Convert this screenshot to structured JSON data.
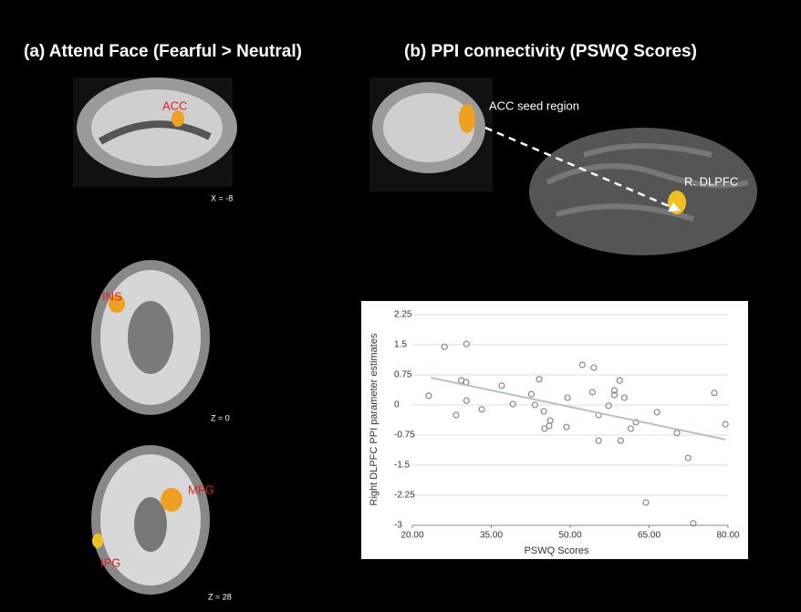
{
  "panels": {
    "a": {
      "title": "(a) Attend Face (Fearful > Neutral)",
      "labels": [
        "ACC",
        "X = -8",
        "INS",
        "Z = 0",
        "MFG",
        "IPG",
        "Z = 28"
      ]
    },
    "b": {
      "title": "(b) PPI connectivity (PSWQ Scores)",
      "labels": [
        "ACC seed region",
        "R. DLPFC"
      ]
    }
  },
  "chart_data": {
    "type": "scatter",
    "x_label": "PSWQ Scores",
    "y_label": "Right DLPFC PPI parameter estimates",
    "xlim": [
      20,
      80
    ],
    "ylim": [
      -3,
      2.25
    ],
    "xticks": [
      {
        "value": 20,
        "label": "20.00"
      },
      {
        "value": 35,
        "label": "35.00"
      },
      {
        "value": 50,
        "label": "50.00"
      },
      {
        "value": 65,
        "label": "65.00"
      },
      {
        "value": 80,
        "label": "80.00"
      }
    ],
    "yticks": [
      -3,
      -2.25,
      -1.5,
      -0.75,
      0,
      0.75,
      1.5,
      2.25
    ],
    "grid": true,
    "color": "#888888",
    "line_color": "#b4c4bc",
    "x": [
      23.1,
      26.1,
      30.3,
      29.3,
      30.2,
      28.3,
      30.3,
      33.2,
      37.0,
      39.1,
      42.6,
      43.3,
      44.1,
      45.0,
      45.1,
      46.0,
      46.2,
      49.3,
      49.5,
      52.3,
      54.5,
      54.2,
      55.4,
      55.4,
      57.3,
      58.4,
      58.4,
      59.4,
      59.6,
      60.3,
      61.5,
      62.5,
      64.4,
      66.5,
      70.3,
      72.4,
      73.4,
      77.4,
      79.5
    ],
    "y": [
      0.23,
      1.45,
      1.52,
      0.61,
      0.57,
      -0.25,
      0.11,
      -0.11,
      0.48,
      0.02,
      0.27,
      0.0,
      0.64,
      -0.16,
      -0.59,
      -0.52,
      -0.39,
      -0.55,
      0.18,
      1.0,
      0.93,
      0.32,
      -0.25,
      -0.89,
      -0.02,
      0.36,
      0.25,
      0.61,
      -0.89,
      0.18,
      -0.59,
      -0.43,
      -2.43,
      -0.18,
      -0.7,
      -1.32,
      -2.95,
      0.3,
      -0.48
    ],
    "trendline": {
      "x": [
        23.5,
        79.5
      ],
      "y": [
        0.68,
        -0.86
      ]
    }
  }
}
